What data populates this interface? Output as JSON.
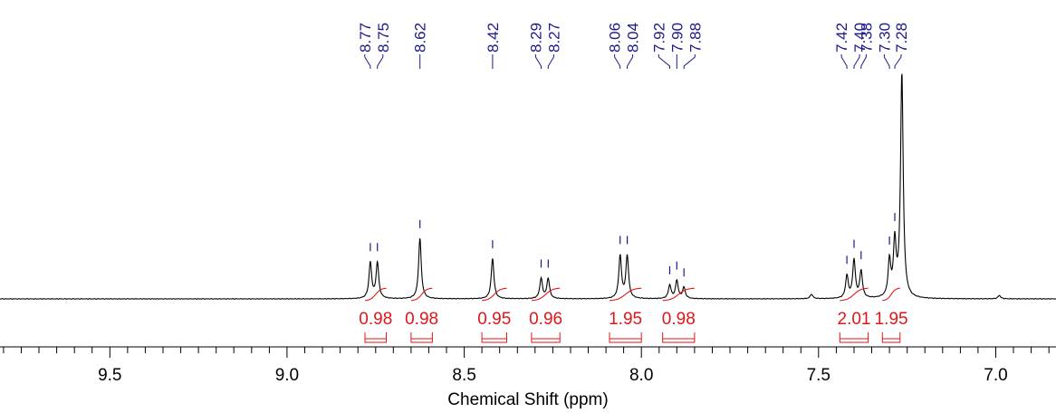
{
  "chart_data": {
    "type": "line",
    "xlabel": "Chemical Shift (ppm)",
    "xlim": [
      9.81,
      6.83
    ],
    "x_reversed": true,
    "x_ticks": [
      9.5,
      9.0,
      8.5,
      8.0,
      7.5,
      7.0
    ],
    "x_tick_labels": [
      "9.5",
      "9.0",
      "8.5",
      "8.0",
      "7.5",
      "7.0"
    ],
    "minor_tick_step": 0.05,
    "colors": {
      "spectrum": "#000000",
      "peak_labels": "#1a1a8c",
      "integrals": "#e0161b"
    },
    "peak_labels": [
      "8.77",
      "8.75",
      "8.62",
      "8.42",
      "8.29",
      "8.27",
      "8.06",
      "8.04",
      "7.92",
      "7.90",
      "7.88",
      "7.42",
      "7.40",
      "7.38",
      "7.30",
      "7.28"
    ],
    "peaks": [
      {
        "label": "8.77",
        "ppm": 8.765,
        "height": 0.16
      },
      {
        "label": "8.75",
        "ppm": 8.745,
        "height": 0.16
      },
      {
        "label": "8.62",
        "ppm": 8.625,
        "height": 0.27
      },
      {
        "label": "8.42",
        "ppm": 8.42,
        "height": 0.18
      },
      {
        "label": "8.29",
        "ppm": 8.283,
        "height": 0.09
      },
      {
        "label": "8.27",
        "ppm": 8.263,
        "height": 0.09
      },
      {
        "label": "8.06",
        "ppm": 8.06,
        "height": 0.19
      },
      {
        "label": "8.04",
        "ppm": 8.04,
        "height": 0.19
      },
      {
        "label": "7.92",
        "ppm": 7.92,
        "height": 0.06
      },
      {
        "label": "7.90",
        "ppm": 7.9,
        "height": 0.08
      },
      {
        "label": "7.88",
        "ppm": 7.88,
        "height": 0.05
      },
      {
        "label": "7.42",
        "ppm": 7.42,
        "height": 0.1
      },
      {
        "label": "7.40",
        "ppm": 7.4,
        "height": 0.17
      },
      {
        "label": "7.38",
        "ppm": 7.38,
        "height": 0.12
      },
      {
        "label": "7.30",
        "ppm": 7.3,
        "height": 0.16
      },
      {
        "label": "7.28",
        "ppm": 7.285,
        "height": 0.24
      },
      {
        "label": "",
        "ppm": 7.265,
        "height": 1.0
      },
      {
        "label": "",
        "ppm": 7.52,
        "height": 0.02
      },
      {
        "label": "",
        "ppm": 6.99,
        "height": 0.015
      }
    ],
    "integrals": [
      {
        "label": "0.98",
        "from": 8.78,
        "to": 8.72
      },
      {
        "label": "0.98",
        "from": 8.65,
        "to": 8.59
      },
      {
        "label": "0.95",
        "from": 8.45,
        "to": 8.38
      },
      {
        "label": "0.96",
        "from": 8.31,
        "to": 8.23
      },
      {
        "label": "1.95",
        "from": 8.09,
        "to": 8.0
      },
      {
        "label": "0.98",
        "from": 7.94,
        "to": 7.85
      },
      {
        "label": "2.01",
        "from": 7.44,
        "to": 7.36
      },
      {
        "label": "1.95",
        "from": 7.32,
        "to": 7.27
      }
    ]
  }
}
